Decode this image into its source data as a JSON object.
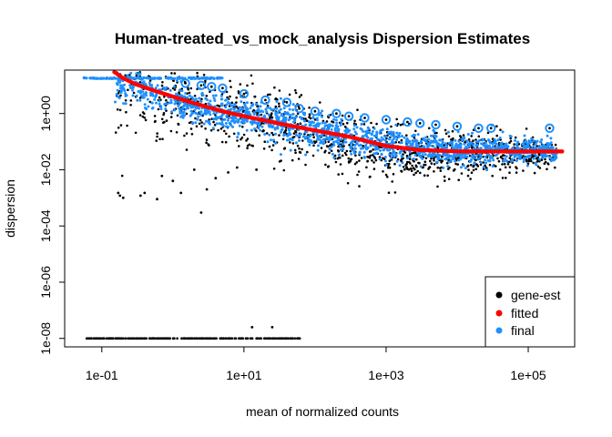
{
  "chart_data": {
    "type": "scatter",
    "title": "Human-treated_vs_mock_analysis Dispersion Estimates",
    "xlabel": "mean of normalized counts",
    "ylabel": "dispersion",
    "x_scale": "log10",
    "y_scale": "log10",
    "xlim": [
      0.03,
      450000
    ],
    "ylim": [
      5e-09,
      35
    ],
    "x_ticks": [
      {
        "value": 0.1,
        "label": "1e-01"
      },
      {
        "value": 10,
        "label": "1e+01"
      },
      {
        "value": 1000,
        "label": "1e+03"
      },
      {
        "value": 100000,
        "label": "1e+05"
      }
    ],
    "y_ticks": [
      {
        "value": 1e-08,
        "label": "1e-08"
      },
      {
        "value": 1e-06,
        "label": "1e-06"
      },
      {
        "value": 0.0001,
        "label": "1e-04"
      },
      {
        "value": 0.01,
        "label": "1e-02"
      },
      {
        "value": 1,
        "label": "1e+00"
      }
    ],
    "legend": {
      "position": "bottom-right",
      "entries": [
        {
          "label": "gene-est",
          "color": "#000000"
        },
        {
          "label": "fitted",
          "color": "#ff0000"
        },
        {
          "label": "final",
          "color": "#1e90ff"
        }
      ]
    },
    "series": [
      {
        "name": "fitted",
        "color": "#ff0000",
        "points": [
          [
            0.15,
            30
          ],
          [
            0.2,
            18
          ],
          [
            0.3,
            11
          ],
          [
            0.5,
            7
          ],
          [
            1,
            4
          ],
          [
            2,
            2.3
          ],
          [
            5,
            1.2
          ],
          [
            10,
            0.8
          ],
          [
            30,
            0.45
          ],
          [
            100,
            0.25
          ],
          [
            300,
            0.15
          ],
          [
            1000,
            0.07
          ],
          [
            3000,
            0.05
          ],
          [
            10000,
            0.045
          ],
          [
            50000,
            0.045
          ],
          [
            100000,
            0.045
          ],
          [
            300000,
            0.045
          ]
        ]
      },
      {
        "name": "gene-est",
        "color": "#000000",
        "cloud": [
          [
            0.3,
            10,
            2.2
          ],
          [
            1,
            3,
            2.0
          ],
          [
            3,
            1.3,
            1.8
          ],
          [
            10,
            0.7,
            1.7
          ],
          [
            30,
            0.35,
            1.5
          ],
          [
            100,
            0.15,
            1.4
          ],
          [
            300,
            0.07,
            1.3
          ],
          [
            1000,
            0.04,
            1.2
          ],
          [
            3000,
            0.035,
            1.0
          ],
          [
            10000,
            0.035,
            0.9
          ],
          [
            50000,
            0.04,
            0.8
          ],
          [
            200000,
            0.04,
            0.6
          ]
        ],
        "outliers": [
          [
            0.17,
            0.0015
          ],
          [
            0.18,
            0.0012
          ],
          [
            0.2,
            0.001
          ],
          [
            0.35,
            0.0012
          ],
          [
            0.4,
            0.0015
          ],
          [
            0.6,
            0.0009
          ],
          [
            1.3,
            0.0015
          ],
          [
            2.5,
            0.0003
          ],
          [
            1.0,
            0.004
          ],
          [
            0.7,
            0.006
          ],
          [
            2.0,
            0.01
          ],
          [
            4,
            0.005
          ],
          [
            6,
            0.008
          ],
          [
            3.0,
            0.002
          ],
          [
            8,
            0.012
          ],
          [
            15,
            0.01
          ]
        ],
        "floor": {
          "y": 1e-08,
          "x_range": [
            0.03,
            70
          ]
        },
        "floor_extras": [
          [
            13,
            2.5e-08
          ],
          [
            25,
            2.5e-08
          ]
        ]
      },
      {
        "name": "final",
        "color": "#1e90ff",
        "cloud": [
          [
            0.3,
            10,
            0.6
          ],
          [
            1,
            3,
            0.5
          ],
          [
            3,
            1.3,
            0.55
          ],
          [
            10,
            0.8,
            0.6
          ],
          [
            30,
            0.5,
            0.6
          ],
          [
            100,
            0.25,
            0.6
          ],
          [
            300,
            0.15,
            0.6
          ],
          [
            1000,
            0.08,
            0.55
          ],
          [
            3000,
            0.06,
            0.5
          ],
          [
            10000,
            0.05,
            0.5
          ],
          [
            50000,
            0.05,
            0.45
          ],
          [
            200000,
            0.045,
            0.4
          ]
        ],
        "ceiling": {
          "y": 18,
          "x_range": [
            0.03,
            5
          ]
        },
        "circled_outliers": [
          [
            5,
            8
          ],
          [
            10,
            5
          ],
          [
            20,
            3
          ],
          [
            40,
            2.5
          ],
          [
            60,
            1.5
          ],
          [
            100,
            1.2
          ],
          [
            200,
            1
          ],
          [
            300,
            0.8
          ],
          [
            500,
            0.7
          ],
          [
            1000,
            0.6
          ],
          [
            2000,
            0.5
          ],
          [
            3000,
            0.45
          ],
          [
            5000,
            0.4
          ],
          [
            10000,
            0.35
          ],
          [
            20000,
            0.3
          ],
          [
            30000,
            0.3
          ],
          [
            200000,
            0.3
          ],
          [
            1.5,
            12
          ],
          [
            2.5,
            10
          ],
          [
            3.5,
            9
          ]
        ]
      }
    ]
  }
}
